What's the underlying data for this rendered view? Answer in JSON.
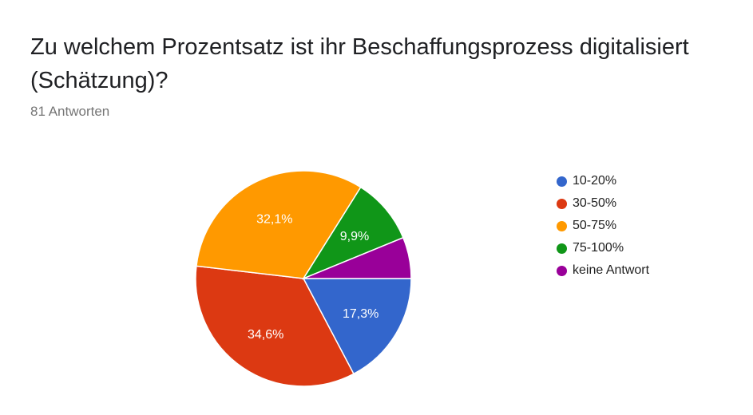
{
  "question": {
    "title": "Zu welchem Prozentsatz ist ihr Beschaffungsprozess digitalisiert (Schätzung)?",
    "response_count": "81 Antworten"
  },
  "chart_data": {
    "type": "pie",
    "title": "Zu welchem Prozentsatz ist ihr Beschaffungsprozess digitalisiert (Schätzung)?",
    "categories": [
      "10-20%",
      "30-50%",
      "50-75%",
      "75-100%",
      "keine Antwort"
    ],
    "values": [
      17.3,
      34.6,
      32.1,
      9.9,
      6.2
    ],
    "data_labels": [
      "17,3%",
      "34,6%",
      "32,1%",
      "9,9%",
      ""
    ],
    "colors": [
      "#3366cc",
      "#dc3912",
      "#ff9900",
      "#109618",
      "#990099"
    ],
    "start_angle": "3 o'clock",
    "direction": "clockwise",
    "legend_position": "right"
  }
}
